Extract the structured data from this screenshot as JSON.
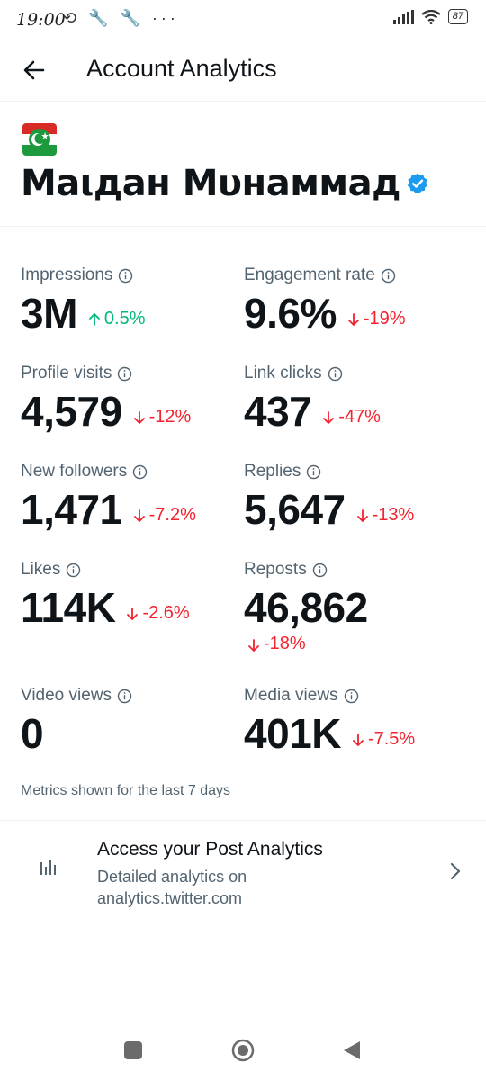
{
  "status_bar": {
    "time": "19:00",
    "left_icons": "⟲ 🔧 🔧 ···",
    "battery": "87"
  },
  "header": {
    "title": "Account Analytics"
  },
  "profile": {
    "name": "Маιдан Мυнаммад"
  },
  "metrics": [
    {
      "label": "Impressions",
      "value": "3M",
      "delta": "0.5%",
      "direction": "up"
    },
    {
      "label": "Engagement rate",
      "value": "9.6%",
      "delta": "-19%",
      "direction": "down"
    },
    {
      "label": "Profile visits",
      "value": "4,579",
      "delta": "-12%",
      "direction": "down"
    },
    {
      "label": "Link clicks",
      "value": "437",
      "delta": "-47%",
      "direction": "down"
    },
    {
      "label": "New followers",
      "value": "1,471",
      "delta": "-7.2%",
      "direction": "down"
    },
    {
      "label": "Replies",
      "value": "5,647",
      "delta": "-13%",
      "direction": "down"
    },
    {
      "label": "Likes",
      "value": "114K",
      "delta": "-2.6%",
      "direction": "down"
    },
    {
      "label": "Reposts",
      "value": "46,862",
      "delta": "-18%",
      "direction": "down"
    },
    {
      "label": "Video views",
      "value": "0",
      "delta": "",
      "direction": ""
    },
    {
      "label": "Media views",
      "value": "401K",
      "delta": "-7.5%",
      "direction": "down"
    }
  ],
  "metrics_note": "Metrics shown for the last 7 days",
  "post_analytics": {
    "title": "Access your Post Analytics",
    "subtitle": "Detailed analytics on analytics.twitter.com"
  },
  "colors": {
    "up": "#00ba7c",
    "down": "#f4212e",
    "verified": "#1d9bf0",
    "text_secondary": "#536471"
  }
}
